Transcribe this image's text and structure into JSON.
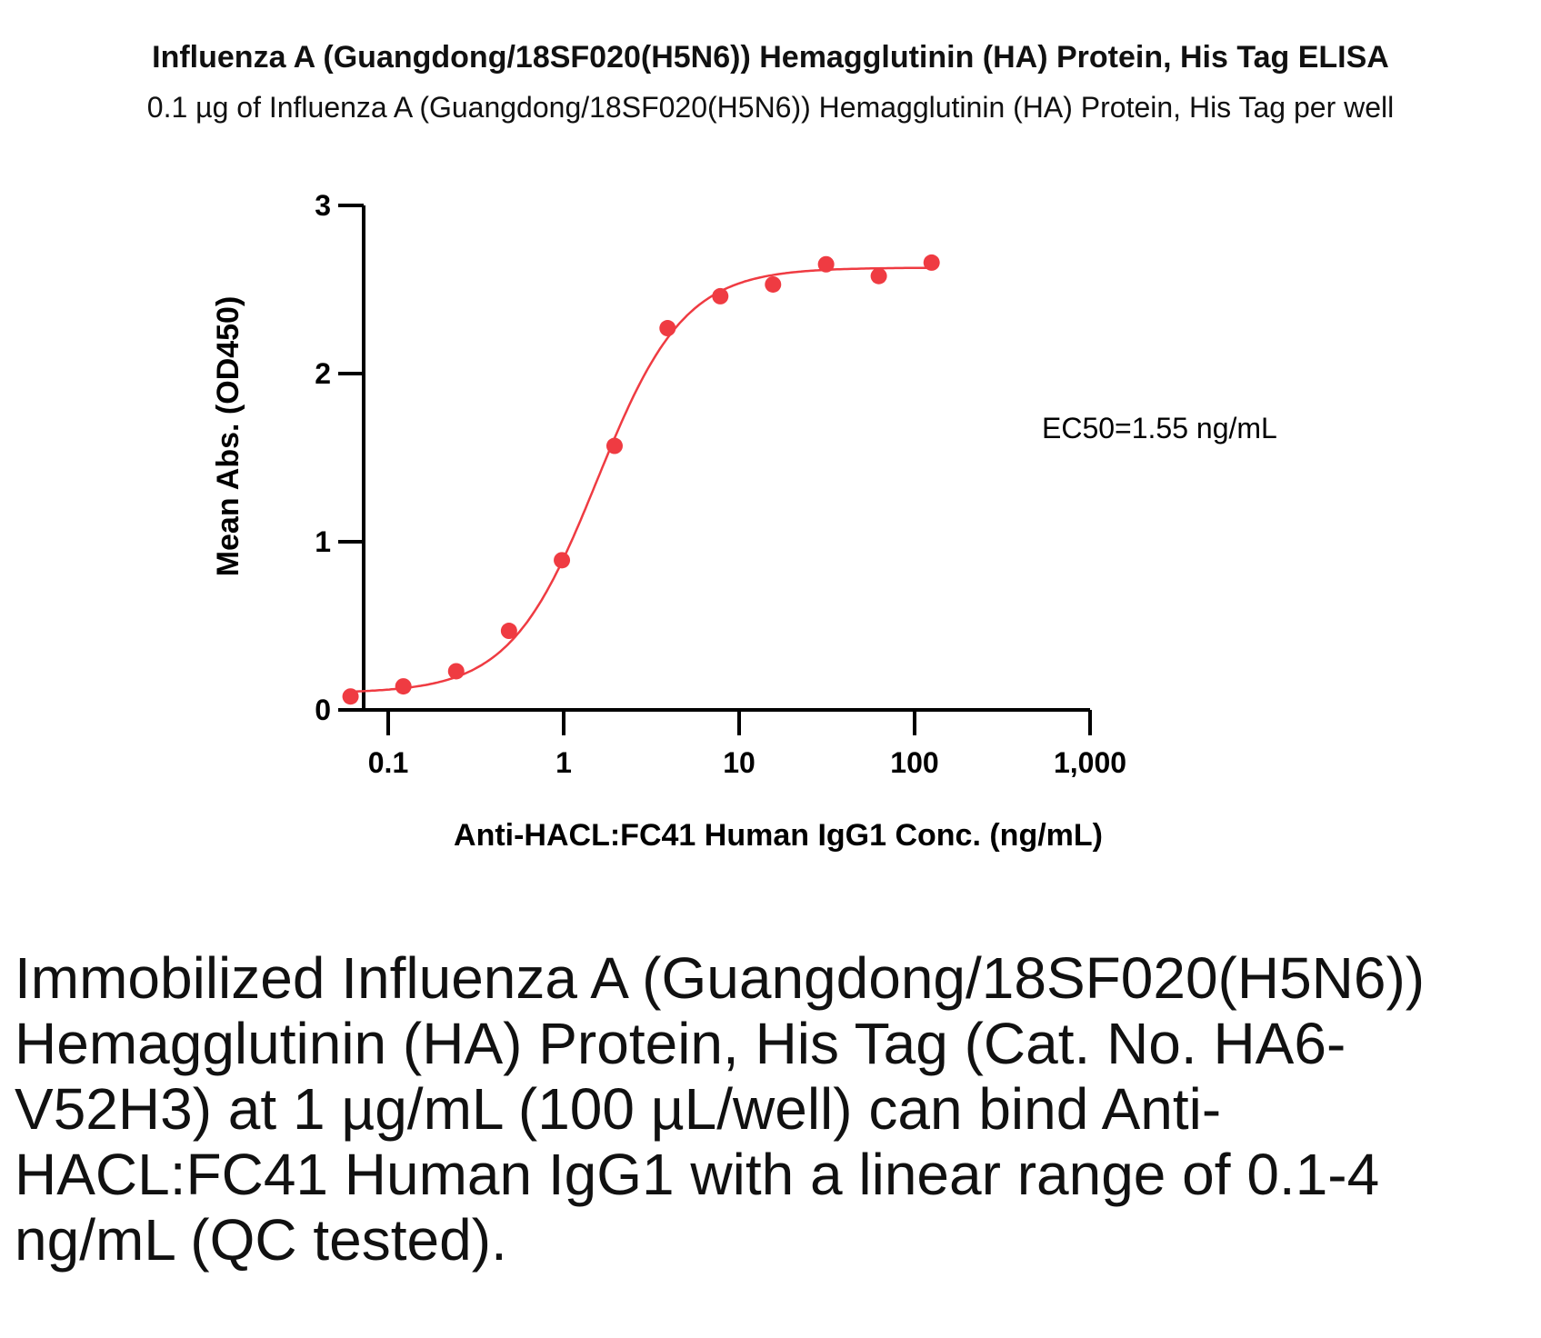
{
  "title": "Influenza A (Guangdong/18SF020(H5N6)) Hemagglutinin (HA) Protein, His Tag ELISA",
  "subtitle": "0.1 µg of Influenza A (Guangdong/18SF020(H5N6)) Hemagglutinin (HA) Protein, His Tag per well",
  "caption": "Immobilized Influenza A (Guangdong/18SF020(H5N6)) Hemagglutinin (HA) Protein, His Tag (Cat. No. HA6-V52H3) at 1 µg/mL (100 µL/well) can bind Anti-HACL:FC41 Human IgG1 with a linear range of 0.1-4 ng/mL (QC tested).",
  "colors": {
    "series": "#ef3b42",
    "axis": "#000000"
  },
  "chart_data": {
    "type": "scatter",
    "xlabel": "Anti-HACL:FC41 Human IgG1 Conc. (ng/mL)",
    "ylabel": "Mean Abs. (OD450)",
    "xscale": "log",
    "xlim": [
      0.05,
      1000
    ],
    "ylim": [
      0,
      3
    ],
    "xticks": [
      0.1,
      1,
      10,
      100,
      1000
    ],
    "xtick_labels": [
      "0.1",
      "1",
      "10",
      "100",
      "1,000"
    ],
    "yticks": [
      0,
      1,
      2,
      3
    ],
    "ytick_labels": [
      "0",
      "1",
      "2",
      "3"
    ],
    "grid": false,
    "annotation": "EC50=1.55 ng/mL",
    "series": [
      {
        "x": [
          0.061,
          0.122,
          0.244,
          0.488,
          0.977,
          1.95,
          3.91,
          7.81,
          15.6,
          31.3,
          62.5,
          125
        ],
        "y": [
          0.08,
          0.14,
          0.23,
          0.47,
          0.89,
          1.57,
          2.27,
          2.46,
          2.53,
          2.65,
          2.58,
          2.66
        ]
      }
    ],
    "fit": {
      "model": "4PL",
      "bottom": 0.1,
      "top": 2.63,
      "ec50": 1.55,
      "hill": 1.75
    }
  }
}
